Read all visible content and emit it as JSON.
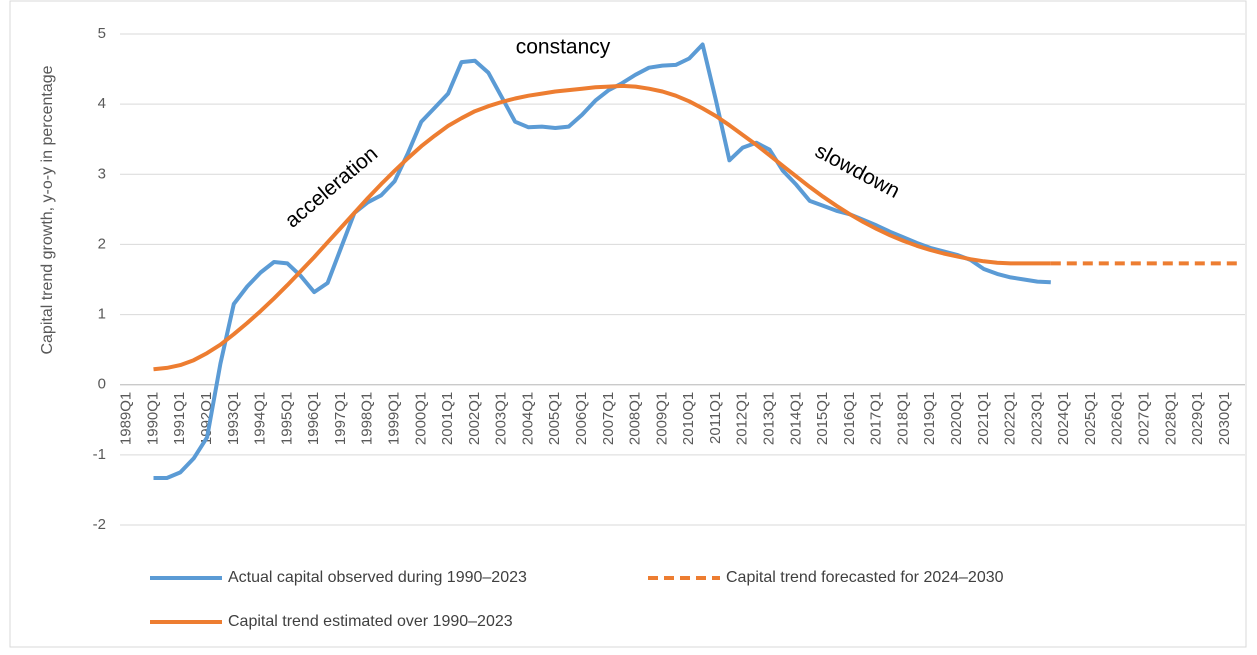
{
  "chart_data": {
    "type": "line",
    "y_axis_label": "Capital trend growth, y-o-y in percentage",
    "annotations": [
      "acceleration",
      "constancy",
      "slowdown"
    ],
    "categories": [
      "1989Q1",
      null,
      "1990Q1",
      null,
      "1991Q1",
      null,
      "1992Q1",
      null,
      "1993Q1",
      null,
      "1994Q1",
      null,
      "1995Q1",
      null,
      "1996Q1",
      null,
      "1997Q1",
      null,
      "1998Q1",
      null,
      "1999Q1",
      null,
      "2000Q1",
      null,
      "2001Q1",
      null,
      "2002Q1",
      null,
      "2003Q1",
      null,
      "2004Q1",
      null,
      "2005Q1",
      null,
      "2006Q1",
      null,
      "2007Q1",
      null,
      "2008Q1",
      null,
      "2009Q1",
      null,
      "2010Q1",
      null,
      "2011Q1",
      null,
      "2012Q1",
      null,
      "2013Q1",
      null,
      "2014Q1",
      null,
      "2015Q1",
      null,
      "2016Q1",
      null,
      "2017Q1",
      null,
      "2018Q1",
      null,
      "2019Q1",
      null,
      "2020Q1",
      null,
      "2021Q1",
      null,
      "2022Q1",
      null,
      "2023Q1",
      null,
      "2024Q1",
      null,
      "2025Q1",
      null,
      "2026Q1",
      null,
      "2027Q1",
      null,
      "2028Q1",
      null,
      "2029Q1",
      null,
      "2030Q1",
      null
    ],
    "series": [
      {
        "name": "Actual capital observed during 1990–2023",
        "color": "#5b9bd5",
        "line_style": "solid",
        "values": [
          null,
          null,
          -1.33,
          -1.33,
          -1.25,
          -1.05,
          -0.75,
          0.3,
          1.15,
          1.4,
          1.6,
          1.75,
          1.73,
          1.55,
          1.32,
          1.45,
          1.95,
          2.45,
          2.6,
          2.7,
          2.9,
          3.3,
          3.75,
          3.95,
          4.15,
          4.6,
          4.62,
          4.45,
          4.1,
          3.75,
          3.67,
          3.68,
          3.66,
          3.68,
          3.85,
          4.05,
          4.2,
          4.3,
          4.42,
          4.52,
          4.55,
          4.56,
          4.65,
          4.85,
          4.05,
          3.2,
          3.38,
          3.45,
          3.35,
          3.05,
          2.85,
          2.62,
          2.55,
          2.48,
          2.43,
          2.35,
          2.27,
          2.18,
          2.1,
          2.02,
          1.95,
          1.9,
          1.85,
          1.78,
          1.65,
          1.58,
          1.53,
          1.5,
          1.47,
          1.46,
          null,
          null,
          null,
          null,
          null,
          null,
          null,
          null,
          null,
          null,
          null,
          null,
          null,
          null
        ]
      },
      {
        "name": "Capital trend forecasted for 2024–2030",
        "color": "#ed7d31",
        "line_style": "dashed",
        "values": [
          null,
          null,
          null,
          null,
          null,
          null,
          null,
          null,
          null,
          null,
          null,
          null,
          null,
          null,
          null,
          null,
          null,
          null,
          null,
          null,
          null,
          null,
          null,
          null,
          null,
          null,
          null,
          null,
          null,
          null,
          null,
          null,
          null,
          null,
          null,
          null,
          null,
          null,
          null,
          null,
          null,
          null,
          null,
          null,
          null,
          null,
          null,
          null,
          null,
          null,
          null,
          null,
          null,
          null,
          null,
          null,
          null,
          null,
          null,
          null,
          null,
          null,
          null,
          null,
          null,
          null,
          null,
          null,
          null,
          1.73,
          1.73,
          1.73,
          1.73,
          1.73,
          1.73,
          1.73,
          1.73,
          1.73,
          1.73,
          1.73,
          1.73,
          1.73,
          1.73,
          1.73
        ]
      },
      {
        "name": "Capital trend estimated over 1990–2023",
        "color": "#ed7d31",
        "line_style": "solid",
        "values": [
          null,
          null,
          0.22,
          0.24,
          0.28,
          0.35,
          0.45,
          0.57,
          0.72,
          0.88,
          1.05,
          1.23,
          1.42,
          1.62,
          1.82,
          2.03,
          2.24,
          2.45,
          2.66,
          2.86,
          3.05,
          3.23,
          3.4,
          3.55,
          3.69,
          3.8,
          3.9,
          3.97,
          4.03,
          4.08,
          4.12,
          4.15,
          4.18,
          4.2,
          4.22,
          4.24,
          4.25,
          4.26,
          4.25,
          4.22,
          4.18,
          4.12,
          4.04,
          3.94,
          3.83,
          3.7,
          3.56,
          3.42,
          3.27,
          3.12,
          2.97,
          2.82,
          2.68,
          2.55,
          2.43,
          2.32,
          2.22,
          2.13,
          2.05,
          1.98,
          1.92,
          1.87,
          1.83,
          1.79,
          1.76,
          1.74,
          1.73,
          1.73,
          1.73,
          1.73,
          null,
          null,
          null,
          null,
          null,
          null,
          null,
          null,
          null,
          null,
          null,
          null,
          null,
          null
        ]
      }
    ],
    "ylim": [
      -2,
      5
    ],
    "yticks": [
      -2,
      -1,
      0,
      1,
      2,
      3,
      4,
      5
    ],
    "grid": true,
    "legend": "bottom"
  }
}
